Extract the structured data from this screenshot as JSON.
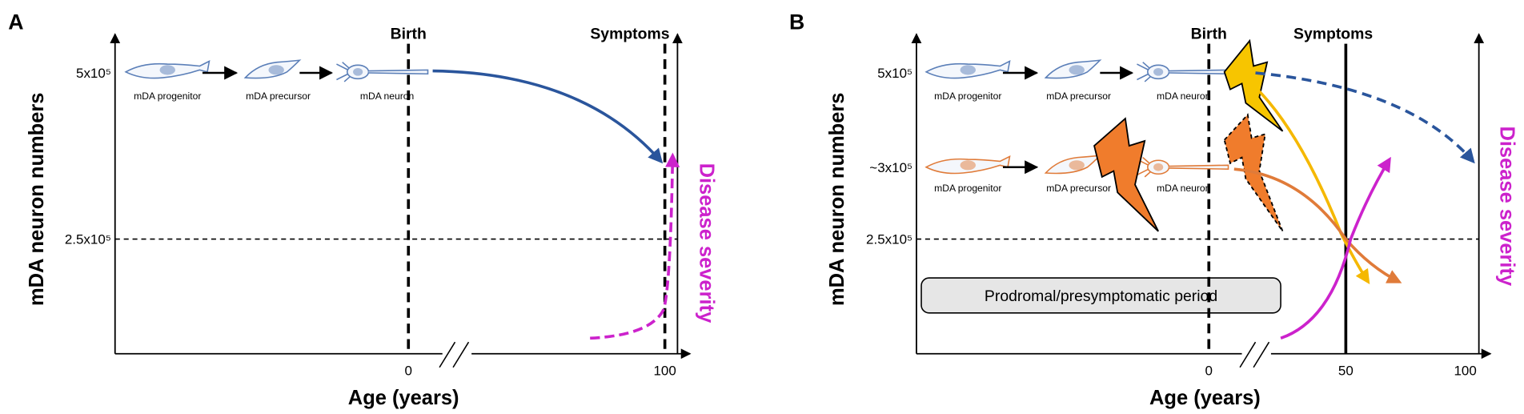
{
  "panels": [
    {
      "label": "A",
      "birth": "Birth",
      "symptoms": "Symptoms",
      "y_ticks": [
        "5x10⁵",
        "2.5x10⁵"
      ],
      "cells": [
        "mDA progenitor",
        "mDA precursor",
        "mDA neuron"
      ],
      "y_axis": "mDA neuron numbers",
      "y2_axis": "Disease severity",
      "x_ticks": [
        "0",
        "100"
      ],
      "x_axis": "Age (years)"
    },
    {
      "label": "B",
      "birth": "Birth",
      "symptoms": "Symptoms",
      "y_ticks": [
        "5x10⁵",
        "~3x10⁵",
        "2.5x10⁵"
      ],
      "cells_healthy": [
        "mDA progenitor",
        "mDA precursor",
        "mDA neuron"
      ],
      "cells_affected": [
        "mDA progenitor",
        "mDA precursor",
        "mDA neuron"
      ],
      "period": "Prodromal/presymptomatic period",
      "y_axis": "mDA neuron numbers",
      "y2_axis": "Disease severity",
      "x_ticks": [
        "0",
        "50",
        "100"
      ],
      "x_axis": "Age (years)"
    }
  ]
}
